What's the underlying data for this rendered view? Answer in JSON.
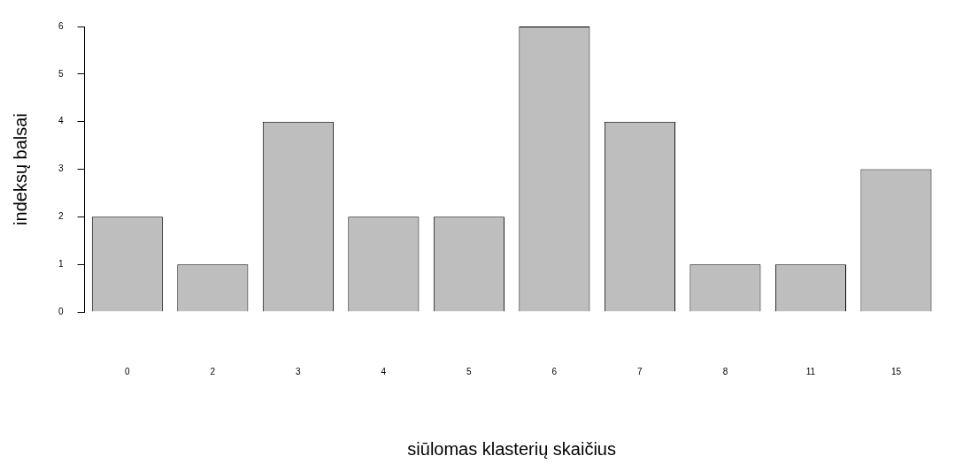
{
  "chart_data": {
    "type": "bar",
    "xlabel": "siūlomas klasterių skaičius",
    "ylabel": "indeksų balsai",
    "categories": [
      "0",
      "2",
      "3",
      "4",
      "5",
      "6",
      "7",
      "8",
      "11",
      "15"
    ],
    "values": [
      2,
      1,
      4,
      2,
      2,
      6,
      4,
      1,
      1,
      3
    ],
    "color": "#bebebe",
    "ylim": [
      0,
      6
    ],
    "yticks": [
      0,
      1,
      2,
      3,
      4,
      5,
      6
    ],
    "grid": false,
    "legend": false
  }
}
